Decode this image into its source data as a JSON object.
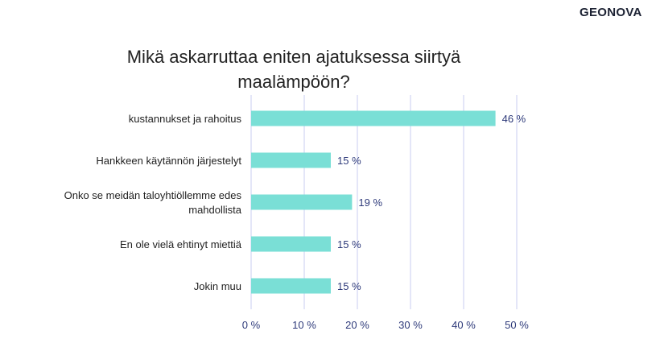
{
  "logo": "GEONOVA",
  "chart_data": {
    "type": "bar",
    "orientation": "horizontal",
    "title": "Mikä askarruttaa eniten ajatuksessa siirtyä maalämpöön?",
    "categories": [
      [
        "kustannukset ja rahoitus"
      ],
      [
        "Hankkeen käytännön järjestelyt"
      ],
      [
        "Onko se meidän taloyhtiöllemme edes",
        "mahdollista"
      ],
      [
        "En ole vielä ehtinyt miettiä"
      ],
      [
        "Jokin muu"
      ]
    ],
    "values": [
      46,
      15,
      19,
      15,
      15
    ],
    "value_labels": [
      "46 %",
      "15 %",
      "19 %",
      "15 %",
      "15 %"
    ],
    "xlim": [
      0,
      50
    ],
    "xticks": [
      0,
      10,
      20,
      30,
      40,
      50
    ],
    "xtick_labels": [
      "0 %",
      "10 %",
      "20 %",
      "30 %",
      "40 %",
      "50 %"
    ],
    "grid": true,
    "xlabel": "",
    "ylabel": "",
    "bar_color": "#7adfd6",
    "grid_color": "#c8cdf0"
  }
}
